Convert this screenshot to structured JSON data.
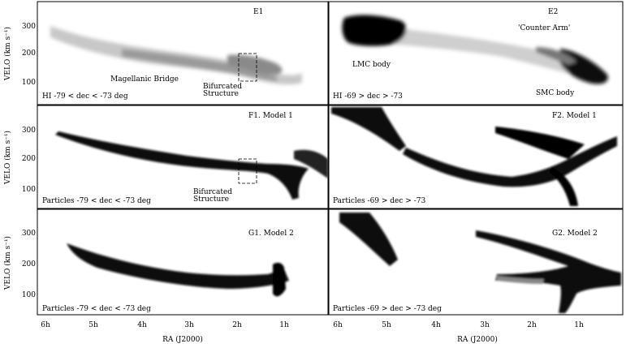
{
  "figure": {
    "panels": [
      {
        "id": "E1",
        "title": "E1",
        "kind": "hi",
        "caption": "HI -79 < dec < -73 deg",
        "annotations": [
          "Magellanic Bridge",
          "Bifurcated",
          "Structure"
        ]
      },
      {
        "id": "E2",
        "title": "E2",
        "kind": "hi",
        "caption": "HI -69 > dec > -73",
        "annotations": [
          "'Counter Arm'",
          "LMC body",
          "SMC body"
        ]
      },
      {
        "id": "F1",
        "title": "F1. Model 1",
        "kind": "particles",
        "caption": "Particles -79 < dec < -73 deg",
        "annotations": [
          "Bifurcated",
          "Structure"
        ]
      },
      {
        "id": "F2",
        "title": "F2. Model 1",
        "kind": "particles",
        "caption": "Particles -69 > dec > -73",
        "annotations": []
      },
      {
        "id": "G1",
        "title": "G1. Model 2",
        "kind": "particles",
        "caption": "Particles -79 < dec < -73 deg",
        "annotations": []
      },
      {
        "id": "G2",
        "title": "G2. Model 2",
        "kind": "particles",
        "caption": "Particles -69 > dec > -73 deg",
        "annotations": []
      }
    ],
    "xaxis_label": "RA (J2000)",
    "yaxis_label": "VELO (km s⁻¹)",
    "xticks": [
      "6h",
      "5h",
      "4h",
      "3h",
      "2h",
      "1h"
    ],
    "yticks": [
      "300",
      "200",
      "100"
    ]
  }
}
